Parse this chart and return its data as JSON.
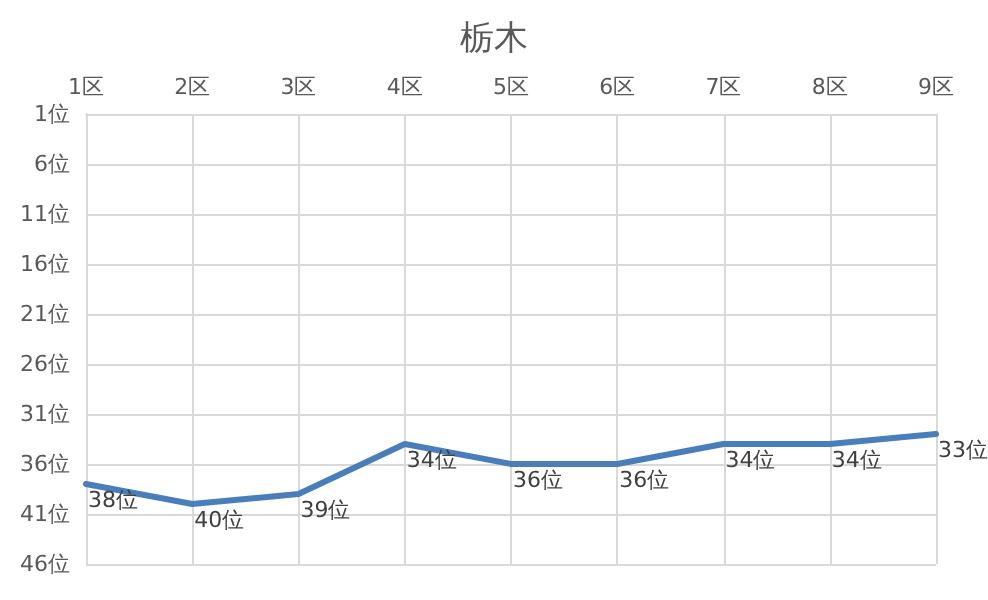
{
  "chart_data": {
    "type": "line",
    "title": "栃木",
    "categories": [
      "1区",
      "2区",
      "3区",
      "4区",
      "5区",
      "6区",
      "7区",
      "8区",
      "9区"
    ],
    "values": [
      38,
      40,
      39,
      34,
      36,
      36,
      34,
      34,
      33
    ],
    "value_labels": [
      "38位",
      "40位",
      "39位",
      "34位",
      "36位",
      "36位",
      "34位",
      "34位",
      "33位"
    ],
    "color": "#4a7ebb",
    "marker": "none",
    "ylim": [
      46,
      1
    ],
    "yticks": [
      {
        "value": 1,
        "label": "1位"
      },
      {
        "value": 6,
        "label": "6位"
      },
      {
        "value": 11,
        "label": "11位"
      },
      {
        "value": 16,
        "label": "16位"
      },
      {
        "value": 21,
        "label": "21位"
      },
      {
        "value": 26,
        "label": "26位"
      },
      {
        "value": 31,
        "label": "31位"
      },
      {
        "value": 36,
        "label": "36位"
      },
      {
        "value": 41,
        "label": "41位"
      },
      {
        "value": 46,
        "label": "46位"
      }
    ],
    "grid": true
  }
}
